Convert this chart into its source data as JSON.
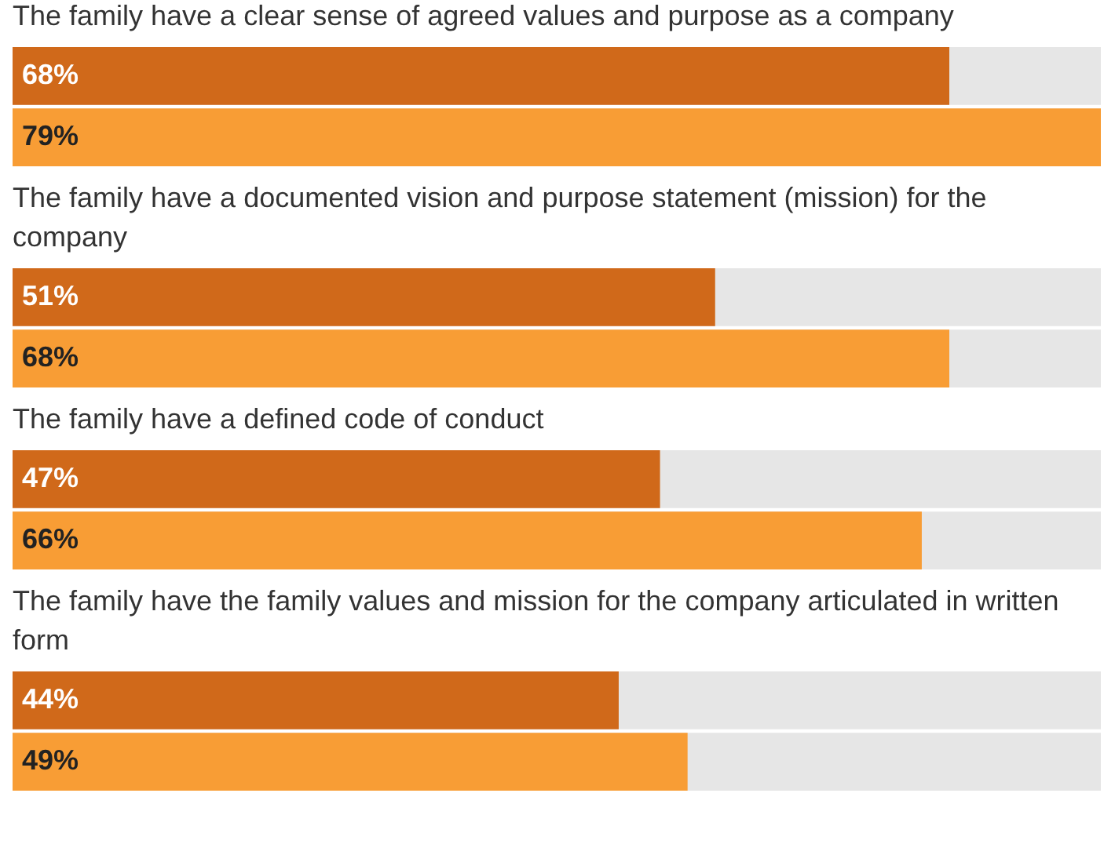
{
  "chart_data": {
    "type": "bar",
    "orientation": "horizontal",
    "categories": [
      "The family have a clear sense of agreed values and purpose as a company",
      "The family have a documented vision and purpose statement (mission) for the company",
      "The family have a defined code of conduct",
      "The family have the family values and mission for the company articulated in written form"
    ],
    "xlim": [
      0,
      79
    ],
    "series": [
      {
        "color": "#d0691a",
        "values": [
          68,
          51,
          47,
          44
        ],
        "value_labels": [
          "68%",
          "51%",
          "47%",
          "44%"
        ]
      },
      {
        "color": "#f89d35",
        "values": [
          79,
          68,
          66,
          49
        ],
        "value_labels": [
          "79%",
          "68%",
          "66%",
          "49%"
        ]
      }
    ]
  }
}
